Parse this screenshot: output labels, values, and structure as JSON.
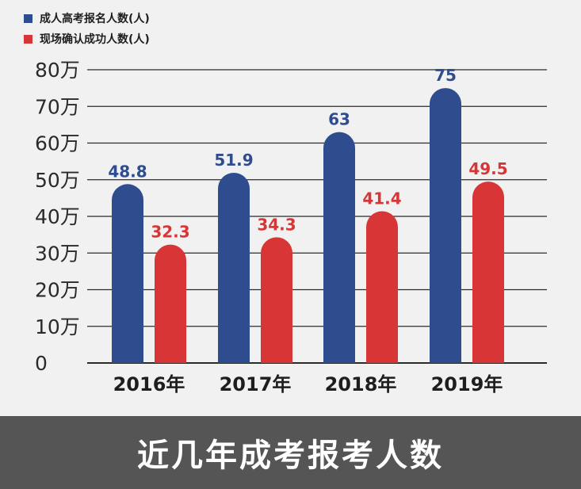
{
  "chart_data": {
    "type": "bar",
    "categories": [
      "2016年",
      "2017年",
      "2018年",
      "2019年"
    ],
    "series": [
      {
        "name": "成人高考报名人数(人)",
        "values": [
          48.8,
          51.9,
          63,
          75
        ],
        "labels": [
          "48.8",
          "51.9",
          "63",
          "75"
        ],
        "color": "#2f4d8e",
        "label_color": "#2f4d8e"
      },
      {
        "name": "现场确认成功人数(人)",
        "values": [
          32.3,
          34.3,
          41.4,
          49.5
        ],
        "labels": [
          "32.3",
          "34.3",
          "41.4",
          "49.5"
        ],
        "color": "#d83636",
        "label_color": "#d83636"
      }
    ],
    "yticks": [
      0,
      10,
      20,
      30,
      40,
      50,
      60,
      70,
      80
    ],
    "ytick_labels": [
      "0",
      "10万",
      "20万",
      "30万",
      "40万",
      "50万",
      "60万",
      "70万",
      "80万"
    ],
    "ylim": [
      0,
      80
    ],
    "grid": true,
    "legend_position": "top-left",
    "title": "近几年成考报考人数"
  },
  "colors": {
    "background": "#f1f1f1",
    "footer": "#555555",
    "grid": "#2b2b2b",
    "axis_text": "#2a2a2a"
  }
}
